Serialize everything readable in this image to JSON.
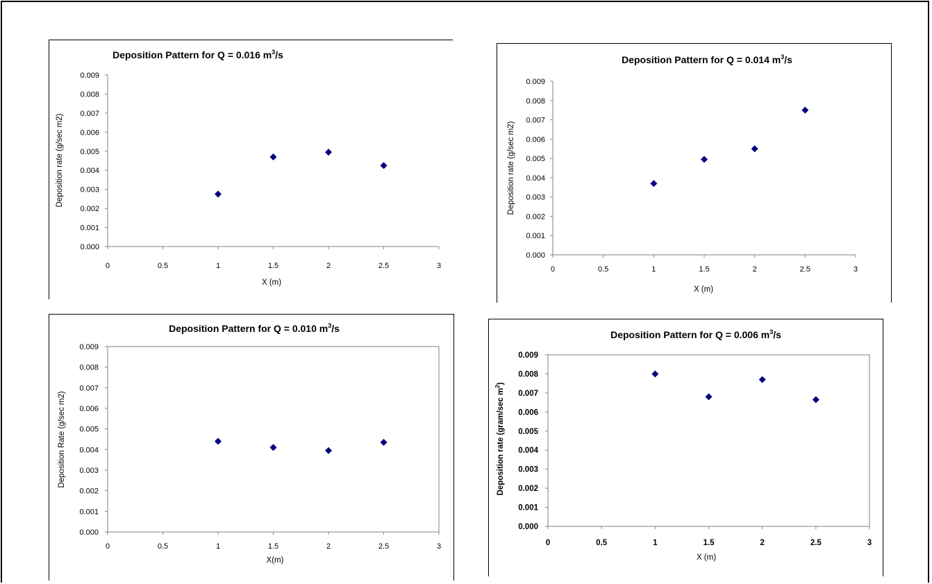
{
  "chart_data": [
    {
      "type": "scatter",
      "title": "Deposition Pattern for Q = 0.016 m",
      "title_sup": "3",
      "title_tail": "/s",
      "xlabel": "X (m)",
      "ylabel": "Deposition rate (g/sec m2)",
      "xlim": [
        0,
        3
      ],
      "ylim": [
        0,
        0.009
      ],
      "x_ticks": [
        "0",
        "0.5",
        "1",
        "1.5",
        "2",
        "2.5",
        "3"
      ],
      "y_ticks": [
        "0.000",
        "0.001",
        "0.002",
        "0.003",
        "0.004",
        "0.005",
        "0.006",
        "0.007",
        "0.008",
        "0.009"
      ],
      "series": [
        {
          "x": [
            1,
            1.5,
            2,
            2.5
          ],
          "y": [
            0.00275,
            0.0047,
            0.00495,
            0.00425
          ]
        }
      ],
      "marker_color": "#000080",
      "grid": false,
      "plot_border": false
    },
    {
      "type": "scatter",
      "title": "Deposition Pattern for Q = 0.014 m",
      "title_sup": "3",
      "title_tail": "/s",
      "xlabel": "X (m)",
      "ylabel": "Deposition rate (g/sec m2)",
      "xlim": [
        0,
        3
      ],
      "ylim": [
        0,
        0.009
      ],
      "x_ticks": [
        "0",
        "0.5",
        "1",
        "1.5",
        "2",
        "2.5",
        "3"
      ],
      "y_ticks": [
        "0.000",
        "0.001",
        "0.002",
        "0.003",
        "0.004",
        "0.005",
        "0.006",
        "0.007",
        "0.008",
        "0.009"
      ],
      "series": [
        {
          "x": [
            1,
            1.5,
            2,
            2.5
          ],
          "y": [
            0.0037,
            0.00495,
            0.0055,
            0.0075
          ]
        }
      ],
      "marker_color": "#000080",
      "grid": false,
      "plot_border": false
    },
    {
      "type": "scatter",
      "title": "Deposition Pattern for Q = 0.010 m",
      "title_sup": "3",
      "title_tail": "/s",
      "xlabel": "X(m)",
      "ylabel": "Deposition Rate (g/sec m2)",
      "xlim": [
        0,
        3
      ],
      "ylim": [
        0,
        0.009
      ],
      "x_ticks": [
        "0",
        "0.5",
        "1",
        "1.5",
        "2",
        "2.5",
        "3"
      ],
      "y_ticks": [
        "0.000",
        "0.001",
        "0.002",
        "0.003",
        "0.004",
        "0.005",
        "0.006",
        "0.007",
        "0.008",
        "0.009"
      ],
      "series": [
        {
          "x": [
            1,
            1.5,
            2,
            2.5
          ],
          "y": [
            0.0044,
            0.0041,
            0.00395,
            0.00435
          ]
        }
      ],
      "marker_color": "#000080",
      "grid": false,
      "plot_border": true
    },
    {
      "type": "scatter",
      "title": "Deposition Pattern for Q = 0.006 m",
      "title_sup": "3",
      "title_tail": "/s",
      "xlabel": "X (m)",
      "ylabel": "Deposition rate  (gram/sec m",
      "ylabel_sup": "2",
      "ylabel_tail": ")",
      "xlim": [
        0,
        3
      ],
      "ylim": [
        0,
        0.009
      ],
      "x_ticks": [
        "0",
        "0.5",
        "1",
        "1.5",
        "2",
        "2.5",
        "3"
      ],
      "y_ticks": [
        "0.000",
        "0.001",
        "0.002",
        "0.003",
        "0.004",
        "0.005",
        "0.006",
        "0.007",
        "0.008",
        "0.009"
      ],
      "series": [
        {
          "x": [
            1,
            1.5,
            2,
            2.5
          ],
          "y": [
            0.008,
            0.0068,
            0.0077,
            0.00665
          ]
        }
      ],
      "marker_color": "#000080",
      "grid": false,
      "plot_border": true
    }
  ]
}
